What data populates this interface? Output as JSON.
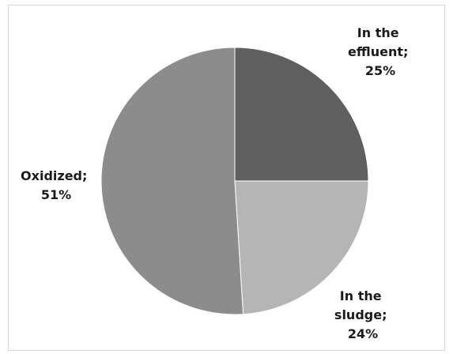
{
  "chart_data": {
    "type": "pie",
    "slices": [
      {
        "label_lines": [
          "In the",
          "effluent;",
          "25%"
        ],
        "value": 25,
        "color": "#5f5f5f"
      },
      {
        "label_lines": [
          "In the",
          "sludge;",
          "24%"
        ],
        "value": 24,
        "color": "#b5b5b5"
      },
      {
        "label_lines": [
          "Oxidized;",
          "51%"
        ],
        "value": 51,
        "color": "#8c8c8c"
      }
    ],
    "legend": "none"
  }
}
